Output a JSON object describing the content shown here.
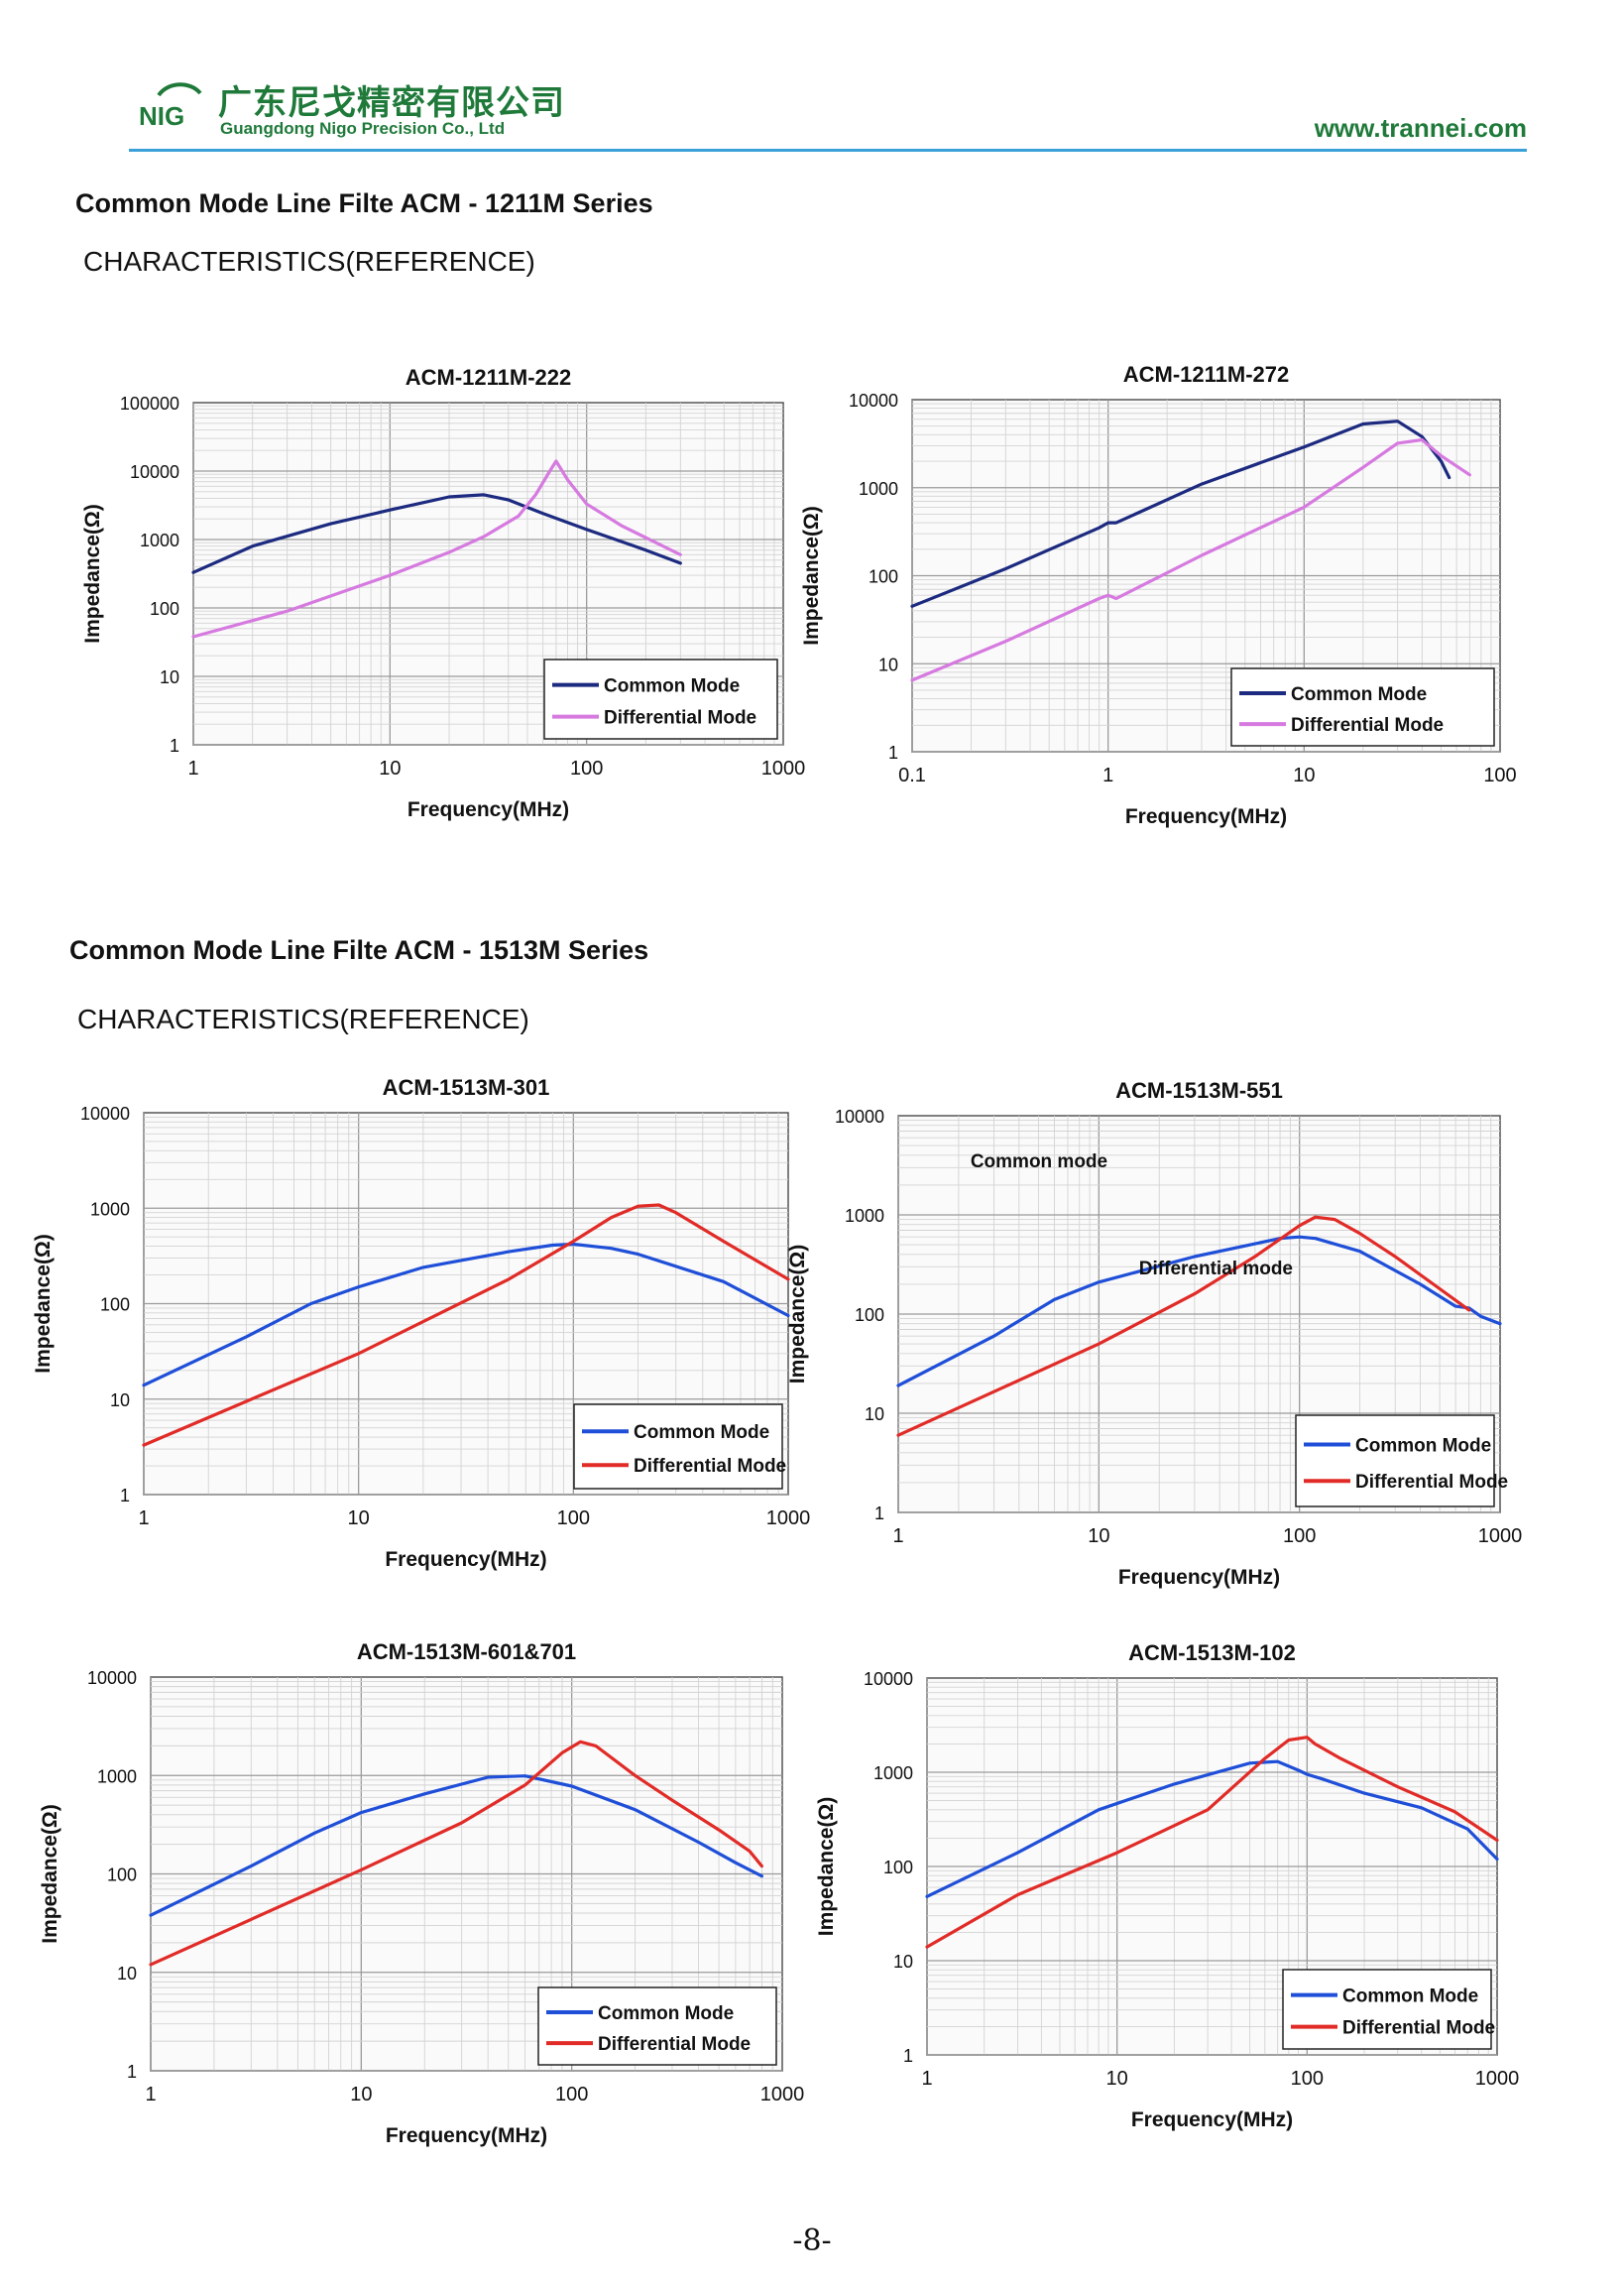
{
  "header": {
    "logo_text": "NIG",
    "company_cn": "广东尼戈精密有限公司",
    "company_en": "Guangdong Nigo Precision Co., Ltd",
    "website": "www.trannei.com",
    "colors": {
      "brand": "#1f7a3a",
      "rule": "#3aa0d8"
    }
  },
  "sections": [
    {
      "title": "Common Mode Line Filte ACM - 1211M Series",
      "subtitle": "CHARACTERISTICS(REFERENCE)"
    },
    {
      "title": "Common Mode Line Filte ACM - 1513M Series",
      "subtitle": "CHARACTERISTICS(REFERENCE)"
    }
  ],
  "page_number": "-8-",
  "chart_data": [
    {
      "type": "line",
      "title": "ACM-1211M-222",
      "xlabel": "Frequency(MHz)",
      "ylabel": "Impedance(Ω)",
      "xscale": "log",
      "yscale": "log",
      "xlim": [
        1,
        1000
      ],
      "ylim": [
        1,
        100000
      ],
      "xticks": [
        "1",
        "10",
        "100",
        "1000"
      ],
      "yticks": [
        "1",
        "10",
        "100",
        "1000",
        "10000",
        "100000"
      ],
      "grid": true,
      "legend_position": "bottom-right",
      "series": [
        {
          "name": "Common Mode",
          "color": "#1c2a80",
          "x": [
            1,
            2,
            5,
            10,
            20,
            30,
            40,
            60,
            100,
            200,
            300
          ],
          "y": [
            330,
            800,
            1700,
            2700,
            4200,
            4500,
            3800,
            2400,
            1400,
            700,
            450
          ]
        },
        {
          "name": "Differential Mode",
          "color": "#d67ae0",
          "x": [
            1,
            3,
            10,
            20,
            30,
            45,
            55,
            65,
            70,
            80,
            100,
            150,
            300
          ],
          "y": [
            38,
            90,
            300,
            650,
            1100,
            2200,
            4500,
            10000,
            14000,
            7500,
            3300,
            1600,
            600
          ]
        }
      ]
    },
    {
      "type": "line",
      "title": "ACM-1211M-272",
      "xlabel": "Frequency(MHz)",
      "ylabel": "Impedance(Ω)",
      "xscale": "log",
      "yscale": "log",
      "xlim": [
        0.1,
        100
      ],
      "ylim": [
        1,
        10000
      ],
      "xticks": [
        "0.1",
        "1",
        "10",
        "100"
      ],
      "yticks": [
        "1",
        "10",
        "100",
        "1000",
        "10000"
      ],
      "grid": true,
      "legend_position": "bottom-right",
      "series": [
        {
          "name": "Common Mode",
          "color": "#1c2a80",
          "x": [
            0.1,
            0.3,
            0.9,
            1,
            1.1,
            3,
            10,
            20,
            30,
            40,
            50,
            55
          ],
          "y": [
            45,
            120,
            350,
            400,
            400,
            1100,
            2900,
            5300,
            5700,
            3800,
            2000,
            1300
          ]
        },
        {
          "name": "Differential Mode",
          "color": "#d67ae0",
          "x": [
            0.1,
            0.3,
            0.9,
            1,
            1.1,
            3,
            10,
            20,
            30,
            40,
            50,
            70
          ],
          "y": [
            6.5,
            18,
            55,
            60,
            55,
            170,
            600,
            1700,
            3200,
            3500,
            2300,
            1400
          ]
        }
      ]
    },
    {
      "type": "line",
      "title": "ACM-1513M-301",
      "xlabel": "Frequency(MHz)",
      "ylabel": "Impedance(Ω)",
      "xscale": "log",
      "yscale": "log",
      "xlim": [
        1,
        1000
      ],
      "ylim": [
        1,
        10000
      ],
      "xticks": [
        "1",
        "10",
        "100",
        "1000"
      ],
      "yticks": [
        "1",
        "10",
        "100",
        "1000",
        "10000"
      ],
      "grid": true,
      "legend_position": "bottom-right",
      "series": [
        {
          "name": "Common Mode",
          "color": "#1f4fd8",
          "x": [
            1,
            3,
            6,
            10,
            20,
            50,
            80,
            100,
            150,
            200,
            500,
            1000
          ],
          "y": [
            14,
            45,
            100,
            150,
            240,
            350,
            410,
            420,
            380,
            330,
            170,
            75
          ]
        },
        {
          "name": "Differential Mode",
          "color": "#e12b27",
          "x": [
            1,
            10,
            50,
            100,
            150,
            200,
            250,
            300,
            500,
            1000
          ],
          "y": [
            3.3,
            30,
            180,
            450,
            800,
            1050,
            1080,
            900,
            450,
            180
          ]
        }
      ]
    },
    {
      "type": "line",
      "title": "ACM-1513M-551",
      "xlabel": "Frequency(MHz)",
      "ylabel": "Impedance(Ω)",
      "xscale": "log",
      "yscale": "log",
      "xlim": [
        1,
        1000
      ],
      "ylim": [
        1,
        10000
      ],
      "xticks": [
        "1",
        "10",
        "100",
        "1000"
      ],
      "yticks": [
        "1",
        "10",
        "100",
        "1000",
        "10000"
      ],
      "annotations": [
        "Common mode",
        "Differential mode"
      ],
      "grid": true,
      "legend_position": "bottom-right",
      "series": [
        {
          "name": "Common Mode",
          "color": "#1f4fd8",
          "x": [
            1,
            3,
            6,
            10,
            30,
            80,
            100,
            120,
            200,
            400,
            600,
            700,
            800,
            1000
          ],
          "y": [
            19,
            60,
            140,
            210,
            380,
            580,
            600,
            580,
            430,
            200,
            120,
            115,
            95,
            80
          ]
        },
        {
          "name": "Differential Mode",
          "color": "#e12b27",
          "x": [
            1,
            10,
            30,
            60,
            100,
            120,
            150,
            200,
            300,
            500,
            700
          ],
          "y": [
            6,
            50,
            160,
            380,
            780,
            950,
            900,
            650,
            380,
            180,
            110
          ]
        }
      ]
    },
    {
      "type": "line",
      "title": "ACM-1513M-601&701",
      "xlabel": "Frequency(MHz)",
      "ylabel": "Impedance(Ω)",
      "xscale": "log",
      "yscale": "log",
      "xlim": [
        1,
        1000
      ],
      "ylim": [
        1,
        10000
      ],
      "xticks": [
        "1",
        "10",
        "100",
        "1000"
      ],
      "yticks": [
        "1",
        "10",
        "100",
        "1000",
        "10000"
      ],
      "grid": true,
      "legend_position": "bottom-right",
      "series": [
        {
          "name": "Common Mode",
          "color": "#1f4fd8",
          "x": [
            1,
            3,
            6,
            10,
            20,
            40,
            60,
            100,
            200,
            400,
            600,
            700,
            800
          ],
          "y": [
            38,
            120,
            260,
            420,
            650,
            960,
            990,
            780,
            450,
            210,
            130,
            110,
            95
          ]
        },
        {
          "name": "Differential Mode",
          "color": "#e12b27",
          "x": [
            1,
            10,
            30,
            60,
            90,
            110,
            130,
            200,
            300,
            500,
            700,
            800
          ],
          "y": [
            12,
            110,
            330,
            800,
            1700,
            2200,
            2000,
            1000,
            560,
            280,
            170,
            120
          ]
        }
      ]
    },
    {
      "type": "line",
      "title": "ACM-1513M-102",
      "xlabel": "Frequency(MHz)",
      "ylabel": "Impedance(Ω)",
      "xscale": "log",
      "yscale": "log",
      "xlim": [
        1,
        1000
      ],
      "ylim": [
        1,
        10000
      ],
      "xticks": [
        "1",
        "10",
        "100",
        "1000"
      ],
      "yticks": [
        "1",
        "10",
        "100",
        "1000",
        "10000"
      ],
      "grid": true,
      "legend_position": "bottom-right",
      "series": [
        {
          "name": "Common Mode",
          "color": "#1f4fd8",
          "x": [
            1,
            3,
            8,
            20,
            50,
            70,
            90,
            100,
            120,
            200,
            400,
            700,
            1000
          ],
          "y": [
            48,
            140,
            400,
            750,
            1250,
            1300,
            1050,
            950,
            850,
            600,
            420,
            250,
            120
          ]
        },
        {
          "name": "Differential Mode",
          "color": "#e12b27",
          "x": [
            1,
            3,
            10,
            30,
            60,
            80,
            100,
            110,
            150,
            300,
            600,
            1000
          ],
          "y": [
            14,
            50,
            140,
            400,
            1400,
            2200,
            2350,
            2000,
            1400,
            700,
            380,
            190
          ]
        }
      ]
    }
  ]
}
